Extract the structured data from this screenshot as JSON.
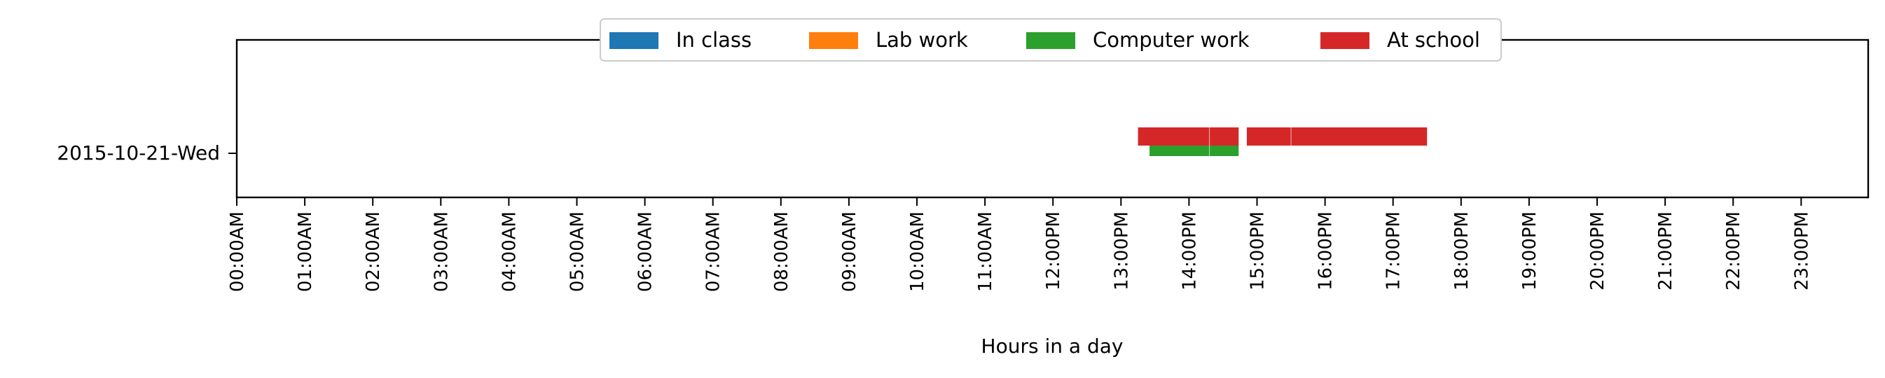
{
  "chart_data": {
    "type": "timeline",
    "xlabel": "Hours in a day",
    "xlim": [
      0,
      24
    ],
    "x_ticks": [
      {
        "value": 0,
        "label": "00:00AM"
      },
      {
        "value": 1,
        "label": "01:00AM"
      },
      {
        "value": 2,
        "label": "02:00AM"
      },
      {
        "value": 3,
        "label": "03:00AM"
      },
      {
        "value": 4,
        "label": "04:00AM"
      },
      {
        "value": 5,
        "label": "05:00AM"
      },
      {
        "value": 6,
        "label": "06:00AM"
      },
      {
        "value": 7,
        "label": "07:00AM"
      },
      {
        "value": 8,
        "label": "08:00AM"
      },
      {
        "value": 9,
        "label": "09:00AM"
      },
      {
        "value": 10,
        "label": "10:00AM"
      },
      {
        "value": 11,
        "label": "11:00AM"
      },
      {
        "value": 12,
        "label": "12:00PM"
      },
      {
        "value": 13,
        "label": "13:00PM"
      },
      {
        "value": 14,
        "label": "14:00PM"
      },
      {
        "value": 15,
        "label": "15:00PM"
      },
      {
        "value": 16,
        "label": "16:00PM"
      },
      {
        "value": 17,
        "label": "17:00PM"
      },
      {
        "value": 18,
        "label": "18:00PM"
      },
      {
        "value": 19,
        "label": "19:00PM"
      },
      {
        "value": 20,
        "label": "20:00PM"
      },
      {
        "value": 21,
        "label": "21:00PM"
      },
      {
        "value": 22,
        "label": "22:00PM"
      },
      {
        "value": 23,
        "label": "23:00PM"
      }
    ],
    "y_categories": [
      "2015-10-21-Wed"
    ],
    "legend_position": "top-center",
    "series": [
      {
        "name": "In class",
        "color": "#1f77b4",
        "intervals": []
      },
      {
        "name": "Lab work",
        "color": "#ff7f0e",
        "intervals": []
      },
      {
        "name": "Computer work",
        "color": "#2ca02c",
        "intervals": [
          {
            "day": "2015-10-21-Wed",
            "start": 13.42,
            "end": 14.3
          },
          {
            "day": "2015-10-21-Wed",
            "start": 14.3,
            "end": 14.73
          }
        ]
      },
      {
        "name": "At school",
        "color": "#d62728",
        "intervals": [
          {
            "day": "2015-10-21-Wed",
            "start": 13.25,
            "end": 14.3
          },
          {
            "day": "2015-10-21-Wed",
            "start": 14.3,
            "end": 14.73
          },
          {
            "day": "2015-10-21-Wed",
            "start": 14.85,
            "end": 15.5
          },
          {
            "day": "2015-10-21-Wed",
            "start": 15.5,
            "end": 17.5
          }
        ]
      }
    ]
  }
}
